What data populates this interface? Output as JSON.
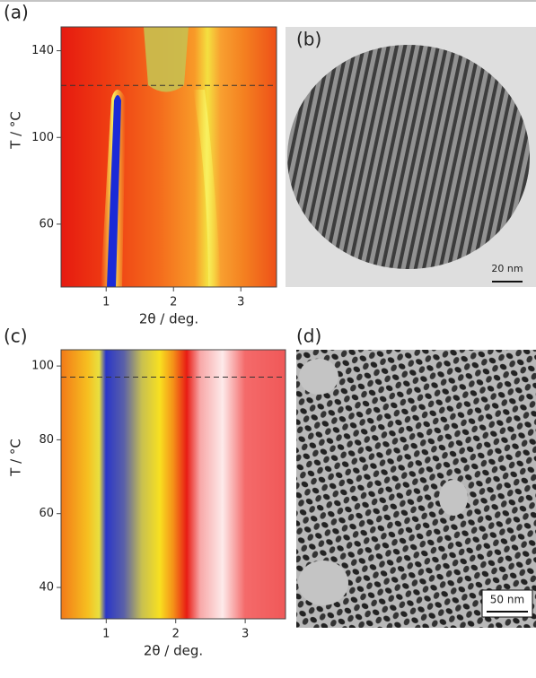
{
  "chart_data": [
    {
      "type": "heatmap",
      "label": "(a)",
      "xlabel": "2θ / deg.",
      "ylabel": "T / °C",
      "xlim": [
        0.33,
        3.53
      ],
      "ylim": [
        31,
        151
      ],
      "xticks": [
        1,
        2,
        3
      ],
      "yticks": [
        60,
        100,
        140
      ],
      "hline": 124
    },
    {
      "type": "heatmap",
      "label": "(c)",
      "xlabel": "2θ / deg.",
      "ylabel": "T / °C",
      "xlim": [
        0.35,
        3.58
      ],
      "ylim": [
        31.5,
        104.4
      ],
      "xticks": [
        1,
        2,
        3
      ],
      "yticks": [
        40,
        60,
        80,
        100
      ],
      "hline": 97
    }
  ],
  "images": [
    {
      "label": "(b)",
      "scale_bar": "20 nm"
    },
    {
      "label": "(d)",
      "scale_bar": "50 nm"
    }
  ]
}
